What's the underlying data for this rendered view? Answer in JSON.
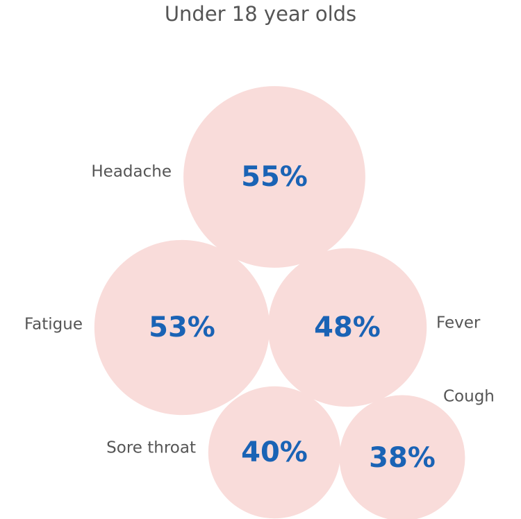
{
  "chart_data": {
    "type": "bubble",
    "title": "Under 18 year olds",
    "categories": [
      "Headache",
      "Fatigue",
      "Fever",
      "Sore throat",
      "Cough"
    ],
    "values": [
      55,
      53,
      48,
      40,
      38
    ],
    "value_labels": [
      "55%",
      "53%",
      "48%",
      "40%",
      "38%"
    ],
    "color": "#f9dcda",
    "label_color": "#1a63b5"
  }
}
